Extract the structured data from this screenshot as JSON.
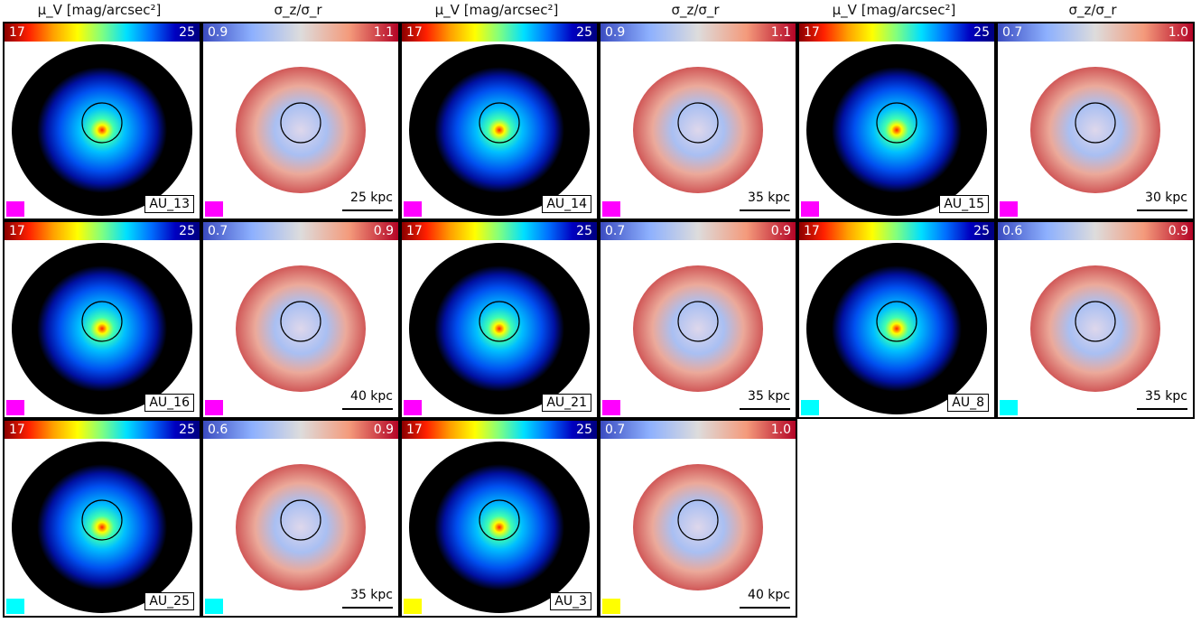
{
  "headers": {
    "col1": "μ_V [mag/arcsec²]",
    "col2": "σ_z/σ_r",
    "col3": "μ_V [mag/arcsec²]",
    "col4": "σ_z/σ_r",
    "col5": "μ_V [mag/arcsec²]",
    "col6": "σ_z/σ_r"
  },
  "colors": {
    "magenta": "#ff00ff",
    "cyan": "#00ffff",
    "yellow": "#ffff00",
    "jet": [
      "#8b0000",
      "#ff2000",
      "#ffa000",
      "#ffff00",
      "#80ff80",
      "#00e0ff",
      "#0070ff",
      "#0000c0",
      "#000080"
    ],
    "coolwarm": [
      "#3b4cc0",
      "#8db0fe",
      "#dddcdc",
      "#f49a7b",
      "#b40426"
    ]
  },
  "galaxies": [
    {
      "name": "AU_13",
      "mu_min": "17",
      "mu_max": "25",
      "sig_min": "0.9",
      "sig_max": "1.1",
      "scale": "25 kpc",
      "marker": "magenta"
    },
    {
      "name": "AU_14",
      "mu_min": "17",
      "mu_max": "25",
      "sig_min": "0.9",
      "sig_max": "1.1",
      "scale": "35 kpc",
      "marker": "magenta"
    },
    {
      "name": "AU_15",
      "mu_min": "17",
      "mu_max": "25",
      "sig_min": "0.7",
      "sig_max": "1.0",
      "scale": "30 kpc",
      "marker": "magenta"
    },
    {
      "name": "AU_16",
      "mu_min": "17",
      "mu_max": "25",
      "sig_min": "0.7",
      "sig_max": "0.9",
      "scale": "40 kpc",
      "marker": "magenta"
    },
    {
      "name": "AU_21",
      "mu_min": "17",
      "mu_max": "25",
      "sig_min": "0.7",
      "sig_max": "0.9",
      "scale": "35 kpc",
      "marker": "magenta"
    },
    {
      "name": "AU_8",
      "mu_min": "17",
      "mu_max": "25",
      "sig_min": "0.6",
      "sig_max": "0.9",
      "scale": "35 kpc",
      "marker": "cyan"
    },
    {
      "name": "AU_25",
      "mu_min": "17",
      "mu_max": "25",
      "sig_min": "0.6",
      "sig_max": "0.9",
      "scale": "35 kpc",
      "marker": "cyan"
    },
    {
      "name": "AU_3",
      "mu_min": "17",
      "mu_max": "25",
      "sig_min": "0.7",
      "sig_max": "1.0",
      "scale": "40 kpc",
      "marker": "yellow"
    }
  ],
  "chart_data": {
    "type": "heatmap",
    "panels": [
      {
        "galaxy": "AU_13",
        "quantity": "mu_V",
        "cbar_range": [
          17,
          25
        ]
      },
      {
        "galaxy": "AU_13",
        "quantity": "sigma_z/sigma_r",
        "cbar_range": [
          0.9,
          1.1
        ],
        "scale_bar": "25 kpc"
      },
      {
        "galaxy": "AU_14",
        "quantity": "mu_V",
        "cbar_range": [
          17,
          25
        ]
      },
      {
        "galaxy": "AU_14",
        "quantity": "sigma_z/sigma_r",
        "cbar_range": [
          0.9,
          1.1
        ],
        "scale_bar": "35 kpc"
      },
      {
        "galaxy": "AU_15",
        "quantity": "mu_V",
        "cbar_range": [
          17,
          25
        ]
      },
      {
        "galaxy": "AU_15",
        "quantity": "sigma_z/sigma_r",
        "cbar_range": [
          0.7,
          1.0
        ],
        "scale_bar": "30 kpc"
      },
      {
        "galaxy": "AU_16",
        "quantity": "mu_V",
        "cbar_range": [
          17,
          25
        ]
      },
      {
        "galaxy": "AU_16",
        "quantity": "sigma_z/sigma_r",
        "cbar_range": [
          0.7,
          0.9
        ],
        "scale_bar": "40 kpc"
      },
      {
        "galaxy": "AU_21",
        "quantity": "mu_V",
        "cbar_range": [
          17,
          25
        ]
      },
      {
        "galaxy": "AU_21",
        "quantity": "sigma_z/sigma_r",
        "cbar_range": [
          0.7,
          0.9
        ],
        "scale_bar": "35 kpc"
      },
      {
        "galaxy": "AU_8",
        "quantity": "mu_V",
        "cbar_range": [
          17,
          25
        ]
      },
      {
        "galaxy": "AU_8",
        "quantity": "sigma_z/sigma_r",
        "cbar_range": [
          0.6,
          0.9
        ],
        "scale_bar": "35 kpc"
      },
      {
        "galaxy": "AU_25",
        "quantity": "mu_V",
        "cbar_range": [
          17,
          25
        ]
      },
      {
        "galaxy": "AU_25",
        "quantity": "sigma_z/sigma_r",
        "cbar_range": [
          0.6,
          0.9
        ],
        "scale_bar": "35 kpc"
      },
      {
        "galaxy": "AU_3",
        "quantity": "mu_V",
        "cbar_range": [
          17,
          25
        ]
      },
      {
        "galaxy": "AU_3",
        "quantity": "sigma_z/sigma_r",
        "cbar_range": [
          0.7,
          1.0
        ],
        "scale_bar": "40 kpc"
      }
    ]
  }
}
